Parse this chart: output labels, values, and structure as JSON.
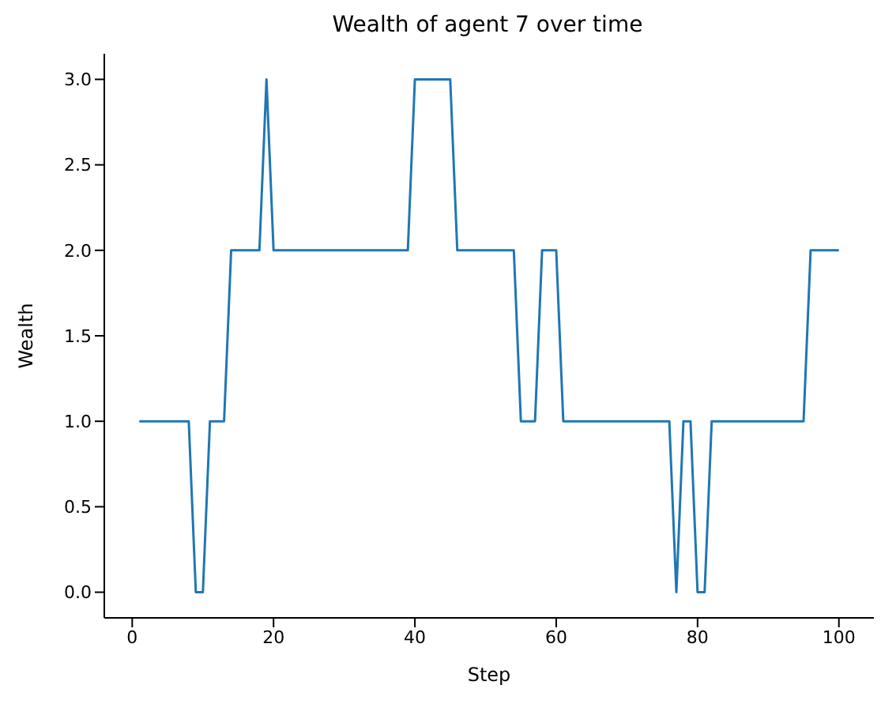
{
  "chart_data": {
    "type": "line",
    "title": "Wealth of agent 7 over time",
    "xlabel": "Step",
    "ylabel": "Wealth",
    "x": [
      1,
      2,
      3,
      4,
      5,
      6,
      7,
      8,
      9,
      10,
      11,
      12,
      13,
      14,
      15,
      16,
      17,
      18,
      19,
      20,
      21,
      22,
      23,
      24,
      25,
      26,
      27,
      28,
      29,
      30,
      31,
      32,
      33,
      34,
      35,
      36,
      37,
      38,
      39,
      40,
      41,
      42,
      43,
      44,
      45,
      46,
      47,
      48,
      49,
      50,
      51,
      52,
      53,
      54,
      55,
      56,
      57,
      58,
      59,
      60,
      61,
      62,
      63,
      64,
      65,
      66,
      67,
      68,
      69,
      70,
      71,
      72,
      73,
      74,
      75,
      76,
      77,
      78,
      79,
      80,
      81,
      82,
      83,
      84,
      85,
      86,
      87,
      88,
      89,
      90,
      91,
      92,
      93,
      94,
      95,
      96,
      97,
      98,
      99,
      100
    ],
    "series": [
      {
        "color": "#1f77b4",
        "values": [
          1,
          1,
          1,
          1,
          1,
          1,
          1,
          1,
          0,
          0,
          1,
          1,
          1,
          2,
          2,
          2,
          2,
          2,
          3,
          2,
          2,
          2,
          2,
          2,
          2,
          2,
          2,
          2,
          2,
          2,
          2,
          2,
          2,
          2,
          2,
          2,
          2,
          2,
          2,
          3,
          3,
          3,
          3,
          3,
          3,
          2,
          2,
          2,
          2,
          2,
          2,
          2,
          2,
          2,
          1,
          1,
          1,
          2,
          2,
          2,
          1,
          1,
          1,
          1,
          1,
          1,
          1,
          1,
          1,
          1,
          1,
          1,
          1,
          1,
          1,
          1,
          0,
          1,
          1,
          0,
          0,
          1,
          1,
          1,
          1,
          1,
          1,
          1,
          1,
          1,
          1,
          1,
          1,
          1,
          1,
          2,
          2,
          2,
          2,
          2
        ]
      }
    ],
    "xlim": [
      -3.95,
      104.95
    ],
    "xticks": [
      0,
      20,
      40,
      60,
      80,
      100
    ],
    "ylim": [
      -0.15,
      3.15
    ],
    "yticks": [
      {
        "value": 0,
        "label": "0.0"
      },
      {
        "value": 0.5,
        "label": "0.5"
      },
      {
        "value": 1,
        "label": "1.0"
      },
      {
        "value": 1.5,
        "label": "1.5"
      },
      {
        "value": 2,
        "label": "2.0"
      },
      {
        "value": 2.5,
        "label": "2.5"
      },
      {
        "value": 3,
        "label": "3.0"
      }
    ],
    "grid": false,
    "legend": false,
    "marker": "none",
    "line_style": "solid"
  }
}
